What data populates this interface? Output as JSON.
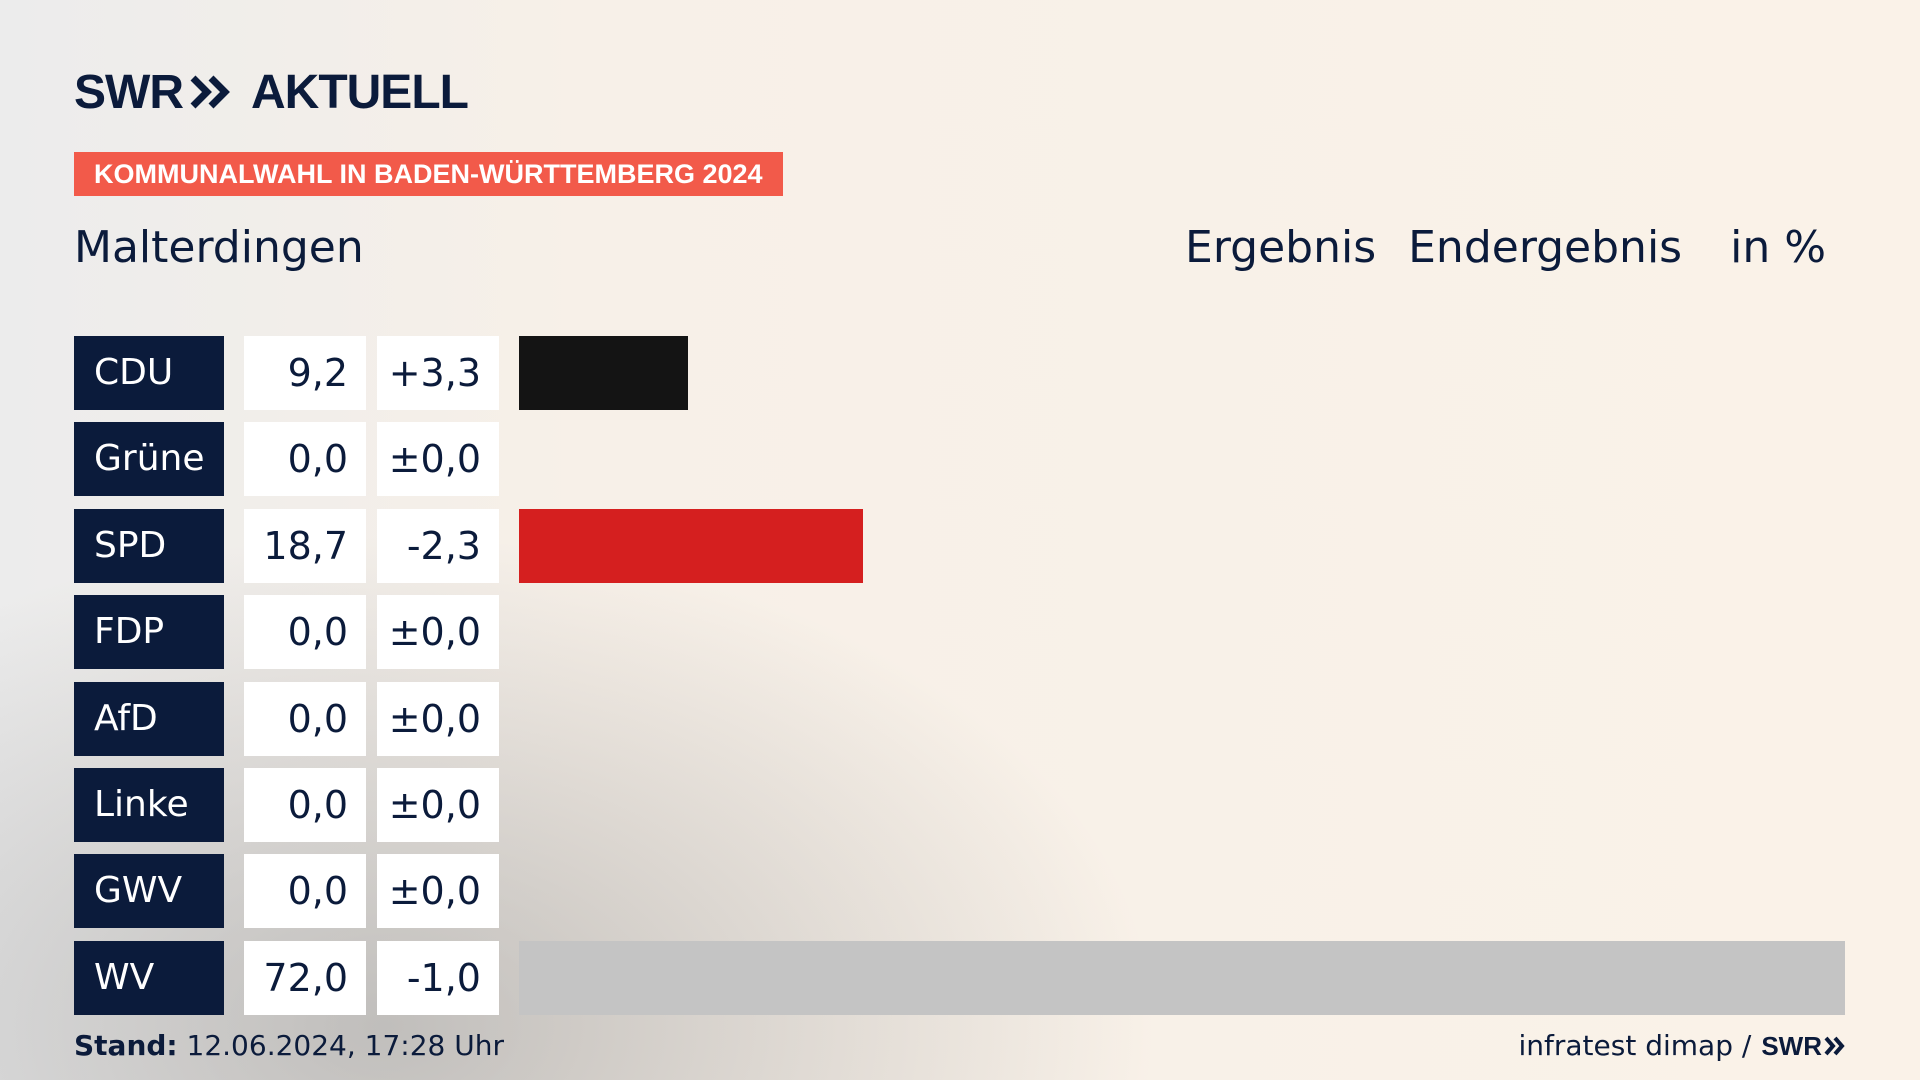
{
  "header": {
    "logo_left": "SWR",
    "logo_right": "AKTUELL",
    "banner": "KOMMUNALWAHL IN BADEN-WÜRTTEMBERG 2024",
    "place": "Malterdingen",
    "col_result": "Ergebnis",
    "col_final": "Endergebnis",
    "col_unit": "in %"
  },
  "chart_data": {
    "type": "bar",
    "orientation": "horizontal",
    "categories": [
      "CDU",
      "Grüne",
      "SPD",
      "FDP",
      "AfD",
      "Linke",
      "GWV",
      "WV"
    ],
    "values": [
      9.2,
      0.0,
      18.7,
      0.0,
      0.0,
      0.0,
      0.0,
      72.0
    ],
    "values_label": [
      "9,2",
      "0,0",
      "18,7",
      "0,0",
      "0,0",
      "0,0",
      "0,0",
      "72,0"
    ],
    "diff_label": [
      "+3,3",
      "±0,0",
      "-2,3",
      "±0,0",
      "±0,0",
      "±0,0",
      "±0,0",
      "-1,0"
    ],
    "colors": [
      "#141414",
      "#1f9a45",
      "#d51f1f",
      "#f5dd00",
      "#1b9fd9",
      "#b21f63",
      "#c4c4c4",
      "#c4c4c4"
    ],
    "xlim": [
      0,
      72
    ]
  },
  "footer": {
    "stand_label": "Stand:",
    "stand_value": "12.06.2024, 17:28 Uhr",
    "source": "infratest dimap /",
    "source_logo": "SWR"
  }
}
